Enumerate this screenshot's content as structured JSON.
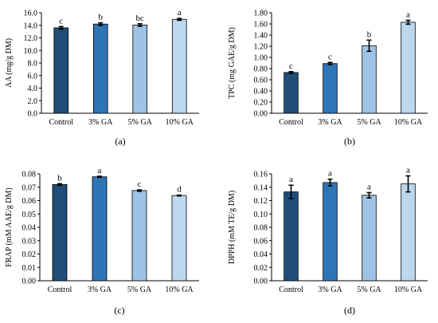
{
  "figure": {
    "colors": {
      "bars": [
        "#1f4e79",
        "#2e75b6",
        "#9dc3e6",
        "#bdd7ee"
      ],
      "bar_stroke": "#000000",
      "axis": "#000000"
    }
  },
  "chart_data": [
    {
      "type": "bar",
      "panel_label": "(a)",
      "categories": [
        "Control",
        "3% GA",
        "5% GA",
        "10% GA"
      ],
      "values": [
        13.6,
        14.2,
        14.05,
        14.95
      ],
      "errors": [
        0.2,
        0.2,
        0.2,
        0.15
      ],
      "letters": [
        "c",
        "b",
        "bc",
        "a"
      ],
      "ylabel": "AA (mg/g DM)",
      "ylim": [
        0,
        16
      ],
      "ytick_step": 2,
      "ytick_decimals": 1,
      "grid": false
    },
    {
      "type": "bar",
      "panel_label": "(b)",
      "categories": [
        "Control",
        "3% GA",
        "5% GA",
        "10% GA"
      ],
      "values": [
        0.73,
        0.89,
        1.21,
        1.63
      ],
      "errors": [
        0.015,
        0.02,
        0.1,
        0.035
      ],
      "letters": [
        "c",
        "c",
        "b",
        "a"
      ],
      "ylabel": "TPC (mg GAE/g DM)",
      "ylim": [
        0,
        1.8
      ],
      "ytick_step": 0.2,
      "ytick_decimals": 2,
      "grid": false
    },
    {
      "type": "bar",
      "panel_label": "(c)",
      "categories": [
        "Control",
        "3% GA",
        "5% GA",
        "10% GA"
      ],
      "values": [
        0.072,
        0.0778,
        0.0675,
        0.0638
      ],
      "errors": [
        0.0006,
        0.0004,
        0.0005,
        0.0003
      ],
      "letters": [
        "b",
        "a",
        "c",
        "d"
      ],
      "ylabel": "FRAP (mM AAE/g DM)",
      "ylim": [
        0,
        0.08
      ],
      "ytick_step": 0.01,
      "ytick_decimals": 2,
      "grid": false
    },
    {
      "type": "bar",
      "panel_label": "(d)",
      "categories": [
        "Control",
        "3% GA",
        "5% GA",
        "10% GA"
      ],
      "values": [
        0.133,
        0.147,
        0.128,
        0.145
      ],
      "errors": [
        0.01,
        0.005,
        0.004,
        0.012
      ],
      "letters": [
        "a",
        "a",
        "a",
        "a"
      ],
      "ylabel": "DPPH (mM TE/g DM)",
      "ylim": [
        0,
        0.16
      ],
      "ytick_step": 0.02,
      "ytick_decimals": 2,
      "grid": false
    }
  ]
}
